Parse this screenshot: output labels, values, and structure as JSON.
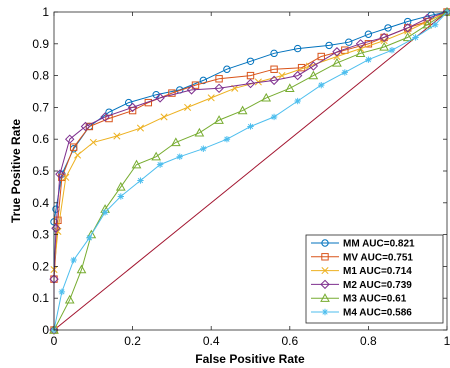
{
  "chart_data": {
    "type": "line",
    "xlabel": "False Positive Rate",
    "ylabel": "True Positive Rate",
    "xlim": [
      0,
      1
    ],
    "ylim": [
      0,
      1
    ],
    "x_ticks": [
      "0",
      "0.2",
      "0.4",
      "0.6",
      "0.8",
      "1"
    ],
    "y_ticks": [
      "0",
      "0.1",
      "0.2",
      "0.3",
      "0.4",
      "0.5",
      "0.6",
      "0.7",
      "0.8",
      "0.9",
      "1"
    ],
    "grid": false,
    "legend_position": "bottom-right",
    "diagonal": {
      "color": "#a2142f",
      "points": [
        [
          0,
          0
        ],
        [
          1,
          1
        ]
      ]
    },
    "series": [
      {
        "name": "MM AUC=0.821",
        "color": "#0072bd",
        "marker": "circle",
        "points": [
          [
            0,
            0
          ],
          [
            0,
            0.34
          ],
          [
            0.005,
            0.38
          ],
          [
            0.02,
            0.49
          ],
          [
            0.05,
            0.57
          ],
          [
            0.09,
            0.64
          ],
          [
            0.14,
            0.685
          ],
          [
            0.19,
            0.715
          ],
          [
            0.26,
            0.74
          ],
          [
            0.32,
            0.755
          ],
          [
            0.38,
            0.785
          ],
          [
            0.44,
            0.82
          ],
          [
            0.5,
            0.845
          ],
          [
            0.56,
            0.87
          ],
          [
            0.62,
            0.885
          ],
          [
            0.7,
            0.895
          ],
          [
            0.75,
            0.905
          ],
          [
            0.8,
            0.93
          ],
          [
            0.85,
            0.95
          ],
          [
            0.9,
            0.97
          ],
          [
            0.96,
            0.99
          ],
          [
            1,
            1
          ]
        ]
      },
      {
        "name": "MV AUC=0.751",
        "color": "#d95319",
        "marker": "square",
        "points": [
          [
            0,
            0
          ],
          [
            0,
            0.16
          ],
          [
            0.01,
            0.345
          ],
          [
            0.02,
            0.48
          ],
          [
            0.05,
            0.575
          ],
          [
            0.09,
            0.64
          ],
          [
            0.14,
            0.665
          ],
          [
            0.2,
            0.69
          ],
          [
            0.24,
            0.715
          ],
          [
            0.3,
            0.745
          ],
          [
            0.36,
            0.77
          ],
          [
            0.42,
            0.79
          ],
          [
            0.5,
            0.8
          ],
          [
            0.56,
            0.82
          ],
          [
            0.63,
            0.825
          ],
          [
            0.68,
            0.86
          ],
          [
            0.74,
            0.88
          ],
          [
            0.8,
            0.9
          ],
          [
            0.84,
            0.92
          ],
          [
            0.9,
            0.95
          ],
          [
            0.95,
            0.97
          ],
          [
            1,
            1
          ]
        ]
      },
      {
        "name": "M1 AUC=0.714",
        "color": "#edb120",
        "marker": "x",
        "points": [
          [
            0,
            0
          ],
          [
            0,
            0.19
          ],
          [
            0.01,
            0.31
          ],
          [
            0.03,
            0.48
          ],
          [
            0.06,
            0.55
          ],
          [
            0.1,
            0.59
          ],
          [
            0.16,
            0.61
          ],
          [
            0.22,
            0.635
          ],
          [
            0.28,
            0.67
          ],
          [
            0.34,
            0.7
          ],
          [
            0.4,
            0.73
          ],
          [
            0.46,
            0.76
          ],
          [
            0.52,
            0.78
          ],
          [
            0.58,
            0.8
          ],
          [
            0.65,
            0.83
          ],
          [
            0.72,
            0.86
          ],
          [
            0.78,
            0.885
          ],
          [
            0.84,
            0.91
          ],
          [
            0.9,
            0.94
          ],
          [
            0.95,
            0.97
          ],
          [
            1,
            1
          ]
        ]
      },
      {
        "name": "M2 AUC=0.739",
        "color": "#7e2f8e",
        "marker": "diamond",
        "points": [
          [
            0,
            0
          ],
          [
            0,
            0.16
          ],
          [
            0.005,
            0.32
          ],
          [
            0.015,
            0.49
          ],
          [
            0.04,
            0.6
          ],
          [
            0.08,
            0.64
          ],
          [
            0.13,
            0.67
          ],
          [
            0.2,
            0.7
          ],
          [
            0.27,
            0.73
          ],
          [
            0.35,
            0.755
          ],
          [
            0.42,
            0.76
          ],
          [
            0.5,
            0.775
          ],
          [
            0.56,
            0.785
          ],
          [
            0.62,
            0.8
          ],
          [
            0.66,
            0.83
          ],
          [
            0.72,
            0.875
          ],
          [
            0.78,
            0.9
          ],
          [
            0.84,
            0.92
          ],
          [
            0.9,
            0.95
          ],
          [
            0.95,
            0.98
          ],
          [
            1,
            1
          ]
        ]
      },
      {
        "name": "M3 AUC=0.61",
        "color": "#77ac30",
        "marker": "triangle",
        "points": [
          [
            0,
            0
          ],
          [
            0.04,
            0.095
          ],
          [
            0.07,
            0.19
          ],
          [
            0.095,
            0.3
          ],
          [
            0.13,
            0.38
          ],
          [
            0.17,
            0.45
          ],
          [
            0.21,
            0.52
          ],
          [
            0.26,
            0.545
          ],
          [
            0.31,
            0.59
          ],
          [
            0.37,
            0.62
          ],
          [
            0.42,
            0.66
          ],
          [
            0.48,
            0.69
          ],
          [
            0.54,
            0.73
          ],
          [
            0.6,
            0.76
          ],
          [
            0.66,
            0.8
          ],
          [
            0.72,
            0.84
          ],
          [
            0.78,
            0.87
          ],
          [
            0.84,
            0.89
          ],
          [
            0.9,
            0.92
          ],
          [
            0.95,
            0.96
          ],
          [
            1,
            1
          ]
        ]
      },
      {
        "name": "M4 AUC=0.586",
        "color": "#4dbeee",
        "marker": "star",
        "points": [
          [
            0,
            0
          ],
          [
            0.02,
            0.12
          ],
          [
            0.05,
            0.22
          ],
          [
            0.09,
            0.29
          ],
          [
            0.13,
            0.37
          ],
          [
            0.17,
            0.42
          ],
          [
            0.22,
            0.47
          ],
          [
            0.27,
            0.52
          ],
          [
            0.32,
            0.545
          ],
          [
            0.38,
            0.57
          ],
          [
            0.44,
            0.6
          ],
          [
            0.5,
            0.64
          ],
          [
            0.56,
            0.67
          ],
          [
            0.62,
            0.72
          ],
          [
            0.68,
            0.77
          ],
          [
            0.74,
            0.81
          ],
          [
            0.8,
            0.85
          ],
          [
            0.86,
            0.88
          ],
          [
            0.92,
            0.92
          ],
          [
            0.97,
            0.96
          ],
          [
            1,
            1
          ]
        ]
      }
    ]
  }
}
